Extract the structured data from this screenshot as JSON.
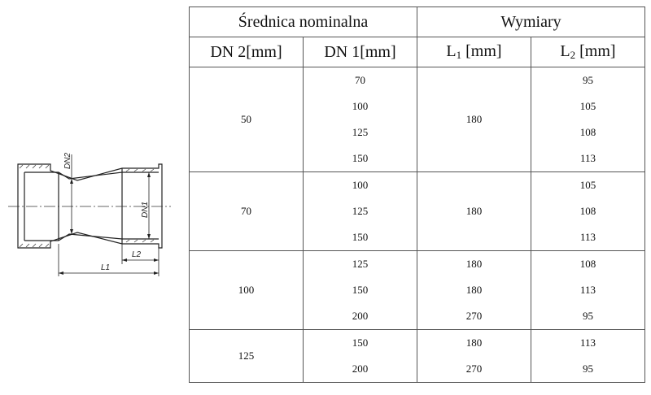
{
  "header": {
    "group1": "Średnica nominalna",
    "group2": "Wymiary",
    "col_dn2": "DN 2[mm]",
    "col_dn1": "DN 1[mm]",
    "col_l1": "L",
    "col_l1_sub": "1",
    "col_l1_unit": " [mm]",
    "col_l2": "L",
    "col_l2_sub": "2",
    "col_l2_unit": " [mm]"
  },
  "drawing": {
    "label_dn2": "DN2",
    "label_dn1": "DN1",
    "label_l1": "L1",
    "label_l2": "L2"
  },
  "rows": [
    {
      "dn2": "50",
      "dn1": [
        "70",
        "100",
        "125",
        "150"
      ],
      "l1": [
        "180"
      ],
      "l2": [
        "95",
        "105",
        "108",
        "113"
      ]
    },
    {
      "dn2": "70",
      "dn1": [
        "100",
        "125",
        "150"
      ],
      "l1": [
        "180"
      ],
      "l2": [
        "105",
        "108",
        "113"
      ]
    },
    {
      "dn2": "100",
      "dn1": [
        "125",
        "150",
        "200"
      ],
      "l1": [
        "180",
        "180",
        "270"
      ],
      "l2": [
        "108",
        "113",
        "95"
      ]
    },
    {
      "dn2": "125",
      "dn1": [
        "150",
        "200"
      ],
      "l1": [
        "180",
        "270"
      ],
      "l2": [
        "113",
        "95"
      ]
    }
  ]
}
